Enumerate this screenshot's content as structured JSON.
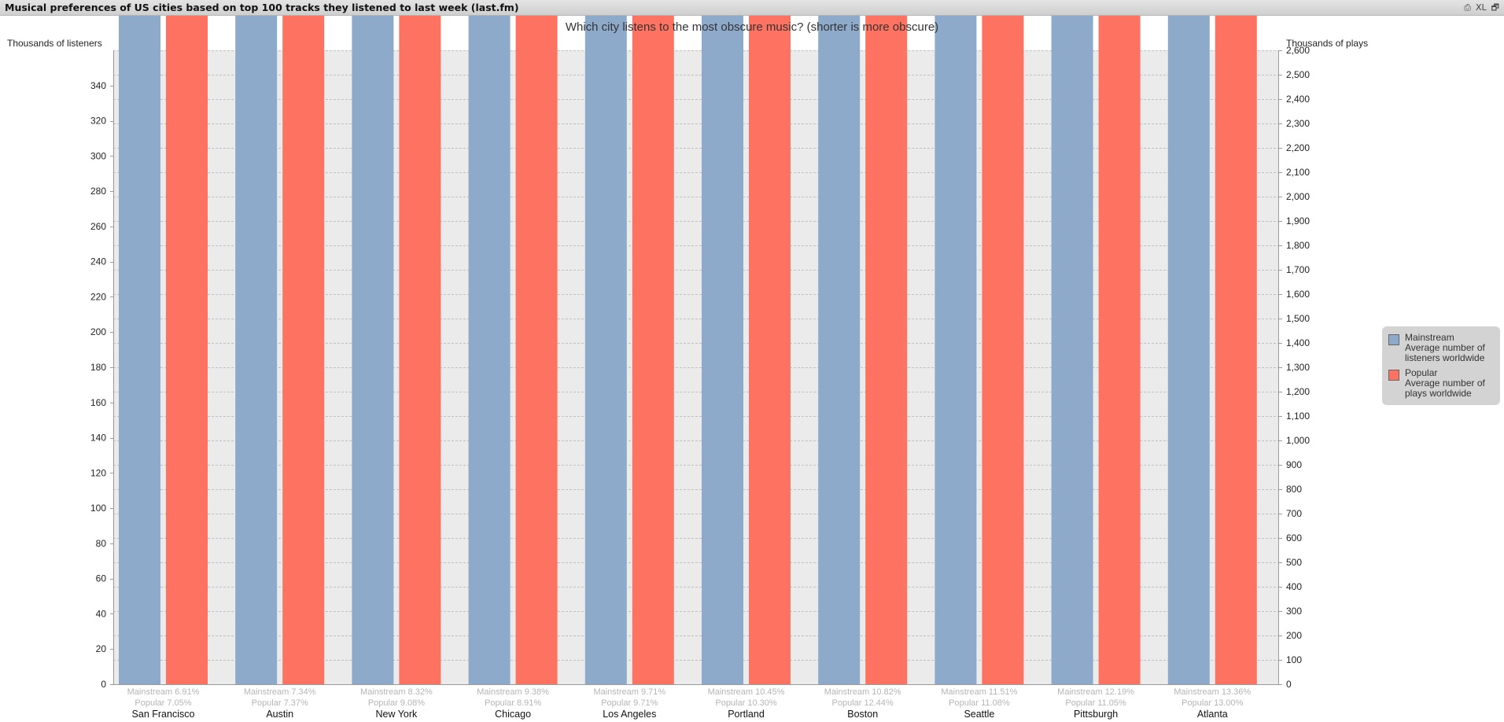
{
  "window": {
    "title": "Musical preferences of US cities based on top 100 tracks they listened to last week (last.fm)",
    "controls": [
      "⎙",
      "XL",
      "🗗"
    ]
  },
  "chart_data": {
    "type": "bar",
    "title": "Which city listens to the most obscure music? (shorter is more obscure)",
    "ylabel_left": "Thousands of listeners",
    "ylabel_right": "Thousands of plays",
    "ylim_left": [
      0,
      360
    ],
    "ylim_right": [
      0,
      2600
    ],
    "yticks_left": [
      0,
      20,
      40,
      60,
      80,
      100,
      120,
      140,
      160,
      180,
      200,
      220,
      240,
      260,
      280,
      300,
      320,
      340
    ],
    "yticks_right": [
      0,
      100,
      200,
      300,
      400,
      500,
      600,
      700,
      800,
      900,
      1000,
      1100,
      1200,
      1300,
      1400,
      1500,
      1600,
      1700,
      1800,
      1900,
      2000,
      2100,
      2200,
      2300,
      2400,
      2500,
      2600
    ],
    "categories": [
      "San Francisco",
      "Austin",
      "New York",
      "Chicago",
      "Los Angeles",
      "Portland",
      "Boston",
      "Seattle",
      "Pittsburgh",
      "Atlanta"
    ],
    "subLabels": [
      [
        "Mainstream 6.91%",
        "Popular 7.05%"
      ],
      [
        "Mainstream 7.34%",
        "Popular 7.37%"
      ],
      [
        "Mainstream 8.32%",
        "Popular 9.08%"
      ],
      [
        "Mainstream 9.38%",
        "Popular 8.91%"
      ],
      [
        "Mainstream 9.71%",
        "Popular 9.71%"
      ],
      [
        "Mainstream 10.45%",
        "Popular 10.30%"
      ],
      [
        "Mainstream 10.82%",
        "Popular 12.44%"
      ],
      [
        "Mainstream 11.51%",
        "Popular 11.08%"
      ],
      [
        "Mainstream 12.19%",
        "Popular 11.05%"
      ],
      [
        "Mainstream 13.36%",
        "Popular 13.00%"
      ]
    ],
    "series": [
      {
        "name": "Mainstream",
        "description": "Average number of listeners worldwide",
        "axis": "left",
        "color": "#8eaacb",
        "values": [
          155102,
          164759,
          186655,
          210583,
          218021,
          234645,
          242960,
          258236,
          273603,
          299941
        ],
        "labels": [
          "155,102",
          "164,759",
          "186,655",
          "210,583",
          "218,021",
          "234,645",
          "242,960",
          "258,236",
          "273,603",
          "299,941"
        ]
      },
      {
        "name": "Popular",
        "description": "Average number of plays worldwide",
        "axis": "right",
        "color": "#fd7261",
        "values": [
          1191288,
          1246052,
          1535354,
          1506038,
          1641069,
          1741017,
          2102341,
          1872086,
          1868298,
          2197769
        ],
        "labels": [
          "1,191,288",
          "1,246,052",
          "1,535,354",
          "1,506,038",
          "1,641,069",
          "1,741,017",
          "2,102,341",
          "1,872,086",
          "1,868,298",
          "2,197,769"
        ]
      }
    ],
    "grid": true,
    "plot_background": "#ebebeb",
    "legend_position": "right"
  }
}
